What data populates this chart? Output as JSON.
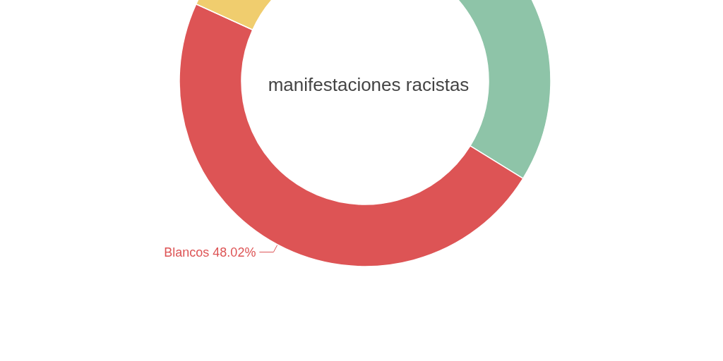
{
  "chart_data": {
    "type": "donut",
    "title": "manifestaciones racistas",
    "categories": [
      null,
      "Blancos",
      null
    ],
    "values": [
      33.8,
      48.02,
      18.18
    ],
    "colors": [
      "#8ec4a8",
      "#dd5455",
      "#f0cd6e"
    ],
    "value_labels": [
      null,
      "48.02%",
      null
    ]
  }
}
